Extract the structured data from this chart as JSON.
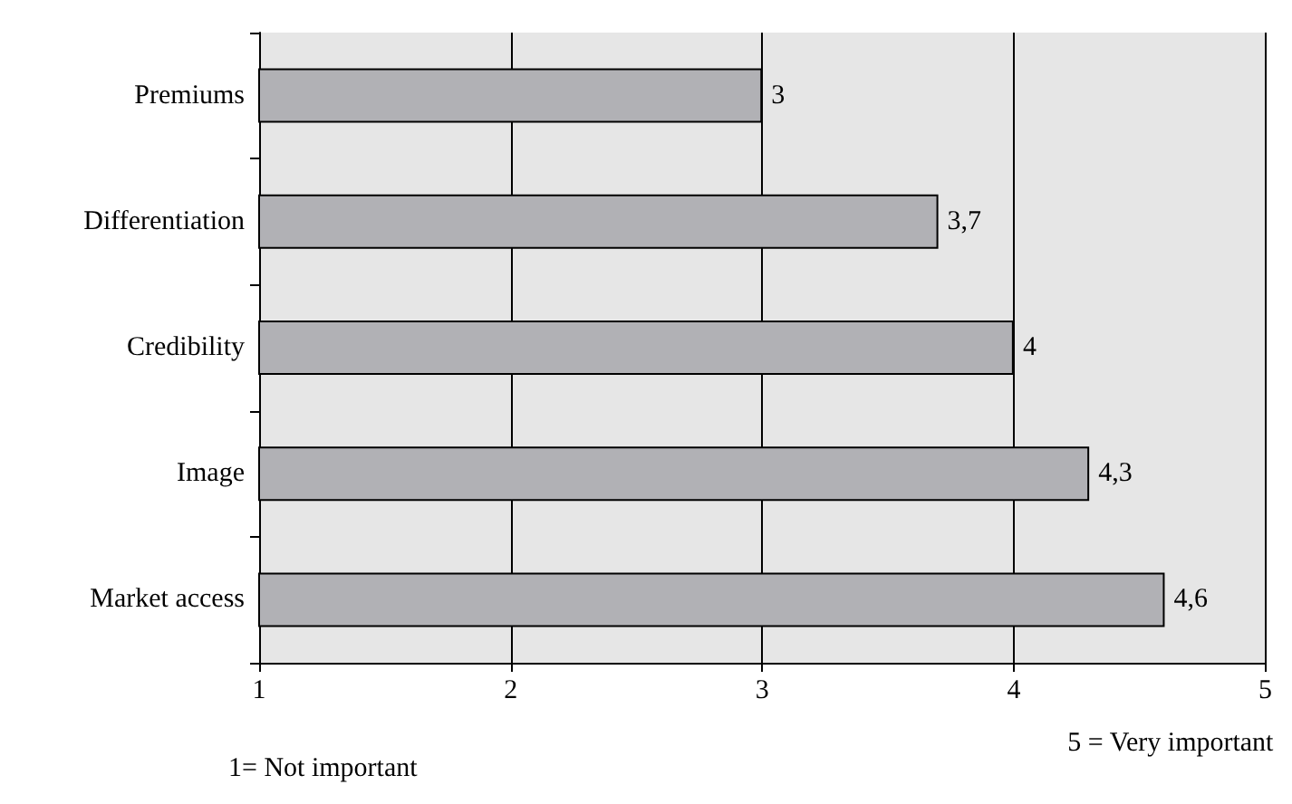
{
  "chart_data": {
    "type": "bar",
    "orientation": "horizontal",
    "categories": [
      "Premiums",
      "Differentiation",
      "Credibility",
      "Image",
      "Market access"
    ],
    "values": [
      3,
      3.7,
      4,
      4.3,
      4.6
    ],
    "value_labels": [
      "3",
      "3,7",
      "4",
      "4,3",
      "4,6"
    ],
    "color": "#b1b1b5",
    "xlim": [
      1,
      5
    ],
    "xticks": [
      1,
      2,
      3,
      4,
      5
    ],
    "grid": "x",
    "annotations": [
      "1= Not important",
      "5 = Very important"
    ]
  }
}
